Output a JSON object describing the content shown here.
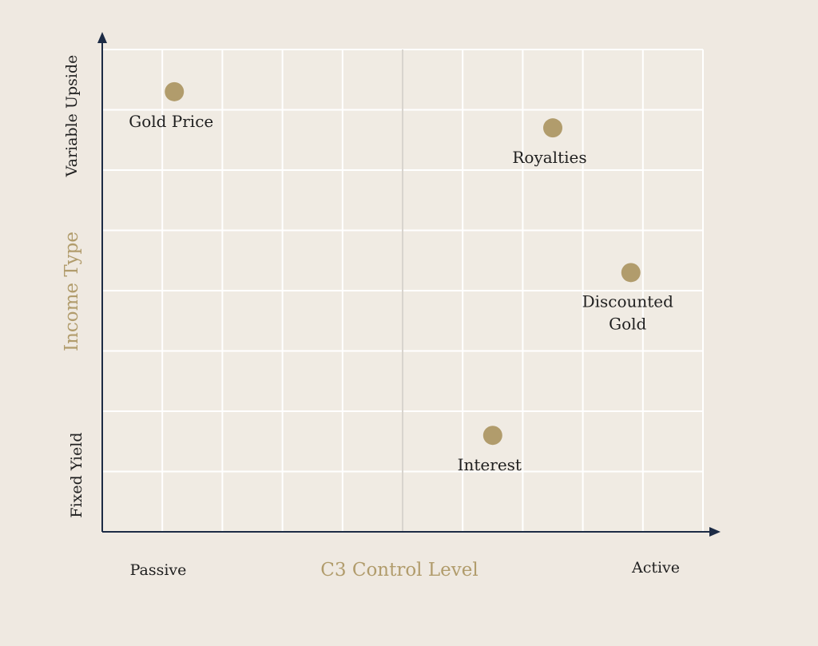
{
  "chart_data": {
    "type": "scatter",
    "title": "",
    "xlabel": "C3 Control Level",
    "ylabel": "Income Type",
    "x_low_label": "Passive",
    "x_high_label": "Active",
    "y_low_label": "Fixed Yield",
    "y_high_label": "Variable Upside",
    "xlim": [
      0,
      10
    ],
    "ylim": [
      0,
      8
    ],
    "grid": true,
    "points": [
      {
        "label": "Gold Price",
        "x": 1.2,
        "y": 7.3
      },
      {
        "label": "Royalties",
        "x": 7.5,
        "y": 6.7
      },
      {
        "label": "Discounted Gold",
        "label_lines": [
          "Discounted",
          "Gold"
        ],
        "x": 8.8,
        "y": 4.3
      },
      {
        "label": "Interest",
        "x": 6.5,
        "y": 1.6
      }
    ]
  },
  "colors": {
    "background": "#efe9e1",
    "plot_background": "#f0ebe3",
    "grid": "#ffffff",
    "midline": "#d8d4ce",
    "axis": "#1c2b45",
    "point": "#b19c6c",
    "accent_text": "#b19c6c",
    "text": "#1f1f1f"
  }
}
